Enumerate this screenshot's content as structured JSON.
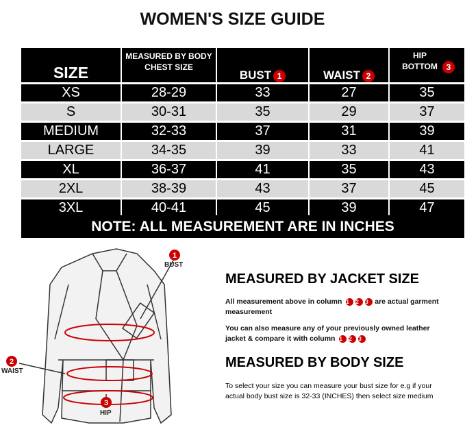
{
  "title": "WOMEN'S SIZE GUIDE",
  "table": {
    "headers": [
      "SIZE",
      "MEASURED BY BODY CHEST SIZE",
      "BUST",
      "WAIST",
      "HIP BOTTOM"
    ],
    "header_markers": [
      "1",
      "2",
      "3"
    ],
    "rows": [
      [
        "XS",
        "28-29",
        "33",
        "27",
        "35"
      ],
      [
        "S",
        "30-31",
        "35",
        "29",
        "37"
      ],
      [
        "MEDIUM",
        "32-33",
        "37",
        "31",
        "39"
      ],
      [
        "LARGE",
        "34-35",
        "39",
        "33",
        "41"
      ],
      [
        "XL",
        "36-37",
        "41",
        "35",
        "43"
      ],
      [
        "2XL",
        "38-39",
        "43",
        "37",
        "45"
      ],
      [
        "3XL",
        "40-41",
        "45",
        "39",
        "47"
      ]
    ]
  },
  "note": "NOTE: ALL MEASUREMENT ARE IN INCHES",
  "diagram": {
    "bust": "BUST",
    "waist": "WAIST",
    "hip": "HIP",
    "markers": [
      "1",
      "2",
      "3"
    ]
  },
  "jacket_section": {
    "heading": "MEASURED BY JACKET SIZE",
    "p1a": "All measurement above in column",
    "p1b": "are actual garment measurement",
    "p2": "You can also measure any of your previously owned leather jacket & compare it with column"
  },
  "body_section": {
    "heading": "MEASURED BY BODY SIZE",
    "p": "To select your size you can measure your bust size for e.g if your actual body bust size is 32-33 (INCHES) then select size medium"
  },
  "colors": {
    "marker": "#cc0000",
    "dark_row": "#000000",
    "light_row": "#d9d9d9"
  }
}
